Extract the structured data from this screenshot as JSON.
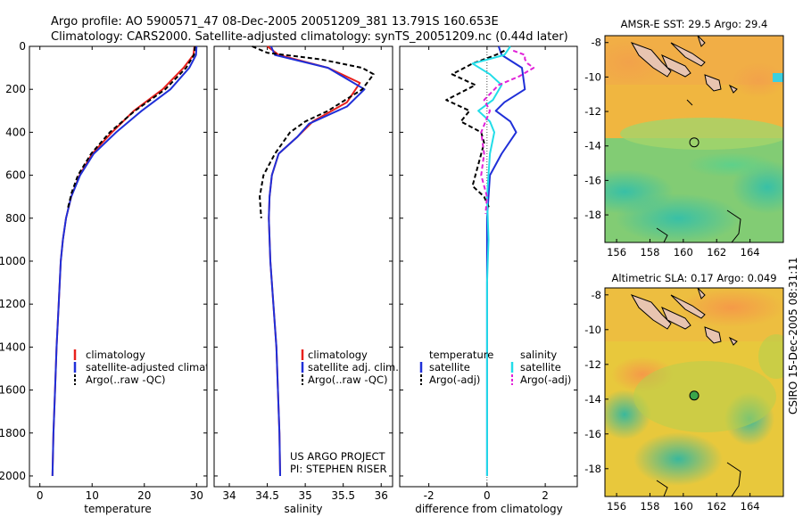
{
  "header": {
    "line1": "Argo profile: AO 5900571_47 08-Dec-2005 20051209_381 13.791S 160.653E",
    "line2": "Climatology: CARS2000. Satellite-adjusted climatology: synTS_20051209.nc (0.44d later)"
  },
  "credits": {
    "project": "US ARGO PROJECT",
    "pi": "PI: STEPHEN RISER",
    "stamp": "CSIRO 15-Dec-2005 08:31:11"
  },
  "colors": {
    "climatology": "#e8201c",
    "satellite": "#1f2fd8",
    "argo": "#000000",
    "sal_satellite": "#22dde8",
    "sal_argo": "#e020d8"
  },
  "chart_data": [
    {
      "id": "temperature",
      "type": "line",
      "xlabel": "temperature",
      "ylabel": "",
      "xlim": [
        -2,
        32
      ],
      "ylim": [
        2050,
        0
      ],
      "xticks": [
        0,
        10,
        20,
        30
      ],
      "yticks": [
        0,
        200,
        400,
        600,
        800,
        1000,
        1200,
        1400,
        1600,
        1800,
        2000
      ],
      "legend": [
        "climatology",
        "satellite-adjusted climatology",
        "Argo(..raw -QC)"
      ],
      "series": [
        {
          "name": "climatology",
          "color": "#e8201c",
          "dash": "",
          "points": [
            [
              29.6,
              0
            ],
            [
              29.4,
              40
            ],
            [
              27.5,
              100
            ],
            [
              23.5,
              200
            ],
            [
              18,
              300
            ],
            [
              13.8,
              400
            ],
            [
              10,
              500
            ],
            [
              7.6,
              600
            ],
            [
              6,
              700
            ],
            [
              5,
              800
            ],
            [
              4.4,
              900
            ],
            [
              4,
              1000
            ],
            [
              3.6,
              1200
            ],
            [
              3.2,
              1400
            ],
            [
              2.9,
              1600
            ],
            [
              2.6,
              1800
            ],
            [
              2.4,
              2000
            ]
          ]
        },
        {
          "name": "satellite-adjusted climatology",
          "color": "#1f2fd8",
          "dash": "",
          "points": [
            [
              30,
              0
            ],
            [
              29.9,
              40
            ],
            [
              28.6,
              100
            ],
            [
              25,
              200
            ],
            [
              19.5,
              300
            ],
            [
              14.6,
              400
            ],
            [
              10.3,
              500
            ],
            [
              7.7,
              600
            ],
            [
              6,
              700
            ],
            [
              5,
              800
            ],
            [
              4.4,
              900
            ],
            [
              4,
              1000
            ],
            [
              3.6,
              1200
            ],
            [
              3.2,
              1400
            ],
            [
              2.9,
              1600
            ],
            [
              2.6,
              1800
            ],
            [
              2.4,
              2000
            ]
          ]
        },
        {
          "name": "Argo(..raw -QC)",
          "color": "#000000",
          "dash": "5,3",
          "points": [
            [
              29.7,
              0
            ],
            [
              29.5,
              40
            ],
            [
              28,
              100
            ],
            [
              24,
              200
            ],
            [
              18.2,
              300
            ],
            [
              13.4,
              400
            ],
            [
              9.8,
              500
            ],
            [
              7.3,
              600
            ],
            [
              6.1,
              680
            ],
            [
              5.3,
              760
            ]
          ]
        }
      ]
    },
    {
      "id": "salinity",
      "type": "line",
      "xlabel": "salinity",
      "ylabel": "",
      "xlim": [
        33.8,
        36.15
      ],
      "ylim": [
        2050,
        0
      ],
      "xticks": [
        34,
        34.5,
        35,
        35.5,
        36
      ],
      "legend": [
        "climatology",
        "satellite adj. clim.",
        "Argo(..raw -QC)"
      ],
      "series": [
        {
          "name": "climatology",
          "color": "#e8201c",
          "dash": "",
          "points": [
            [
              34.5,
              0
            ],
            [
              34.65,
              40
            ],
            [
              35.3,
              100
            ],
            [
              35.72,
              170
            ],
            [
              35.55,
              260
            ],
            [
              35.1,
              350
            ],
            [
              34.9,
              420
            ],
            [
              34.65,
              500
            ],
            [
              34.56,
              600
            ],
            [
              34.53,
              700
            ],
            [
              34.52,
              800
            ],
            [
              34.54,
              1000
            ],
            [
              34.58,
              1200
            ],
            [
              34.62,
              1400
            ],
            [
              34.64,
              1600
            ],
            [
              34.66,
              1800
            ],
            [
              34.67,
              2000
            ]
          ]
        },
        {
          "name": "satellite adj. clim.",
          "color": "#1f2fd8",
          "dash": "",
          "points": [
            [
              34.55,
              0
            ],
            [
              34.6,
              40
            ],
            [
              35.3,
              100
            ],
            [
              35.78,
              200
            ],
            [
              35.55,
              280
            ],
            [
              35.05,
              360
            ],
            [
              34.9,
              420
            ],
            [
              34.65,
              500
            ],
            [
              34.56,
              600
            ],
            [
              34.53,
              700
            ],
            [
              34.52,
              800
            ],
            [
              34.54,
              1000
            ],
            [
              34.58,
              1200
            ],
            [
              34.62,
              1400
            ],
            [
              34.64,
              1600
            ],
            [
              34.66,
              1800
            ],
            [
              34.67,
              2000
            ]
          ]
        },
        {
          "name": "Argo(..raw -QC)",
          "color": "#000000",
          "dash": "5,3",
          "points": [
            [
              34.3,
              0
            ],
            [
              34.5,
              30
            ],
            [
              35.2,
              60
            ],
            [
              35.75,
              100
            ],
            [
              35.9,
              130
            ],
            [
              35.75,
              200
            ],
            [
              35.3,
              300
            ],
            [
              35,
              350
            ],
            [
              34.8,
              400
            ],
            [
              34.6,
              500
            ],
            [
              34.45,
              600
            ],
            [
              34.4,
              700
            ],
            [
              34.42,
              800
            ]
          ]
        }
      ]
    },
    {
      "id": "difference",
      "type": "line",
      "xlabel": "difference from climatology",
      "ylabel": "",
      "xlim": [
        -3,
        3.1
      ],
      "ylim": [
        2050,
        0
      ],
      "xticks": [
        -2,
        0,
        2
      ],
      "legend_titles": [
        "temperature",
        "salinity"
      ],
      "legend": [
        "satellite",
        "Argo(-adj)",
        "satellite",
        "Argo(-adj)"
      ],
      "series": [
        {
          "name": "temperature satellite",
          "color": "#1f2fd8",
          "dash": "",
          "points": [
            [
              0.4,
              0
            ],
            [
              0.5,
              40
            ],
            [
              1.2,
              100
            ],
            [
              1.3,
              200
            ],
            [
              0.6,
              260
            ],
            [
              0.3,
              300
            ],
            [
              0.8,
              350
            ],
            [
              1.0,
              400
            ],
            [
              0.5,
              500
            ],
            [
              0.1,
              600
            ],
            [
              0.05,
              700
            ],
            [
              0,
              800
            ],
            [
              0,
              1000
            ],
            [
              0,
              1500
            ],
            [
              0,
              2000
            ]
          ]
        },
        {
          "name": "temperature Argo(-adj)",
          "color": "#000000",
          "dash": "5,3",
          "points": [
            [
              0.6,
              20
            ],
            [
              0.3,
              40
            ],
            [
              -0.5,
              80
            ],
            [
              -1.2,
              130
            ],
            [
              -0.4,
              180
            ],
            [
              -1.4,
              250
            ],
            [
              -0.6,
              300
            ],
            [
              -0.9,
              350
            ],
            [
              -0.2,
              400
            ],
            [
              -0.1,
              450
            ],
            [
              -0.3,
              550
            ],
            [
              -0.5,
              650
            ],
            [
              -0.1,
              700
            ],
            [
              0.1,
              760
            ]
          ]
        },
        {
          "name": "salinity satellite",
          "color": "#22dde8",
          "dash": "",
          "points": [
            [
              0.8,
              0
            ],
            [
              0.6,
              40
            ],
            [
              -0.5,
              80
            ],
            [
              0.1,
              130
            ],
            [
              0.5,
              180
            ],
            [
              0.2,
              250
            ],
            [
              -0.3,
              300
            ],
            [
              0.1,
              350
            ],
            [
              0.25,
              400
            ],
            [
              0.1,
              500
            ],
            [
              0,
              700
            ],
            [
              0.05,
              900
            ],
            [
              0,
              1100
            ],
            [
              0,
              1400
            ],
            [
              0,
              2000
            ]
          ]
        },
        {
          "name": "salinity Argo(-adj)",
          "color": "#e020d8",
          "dash": "5,3",
          "points": [
            [
              0.9,
              20
            ],
            [
              1.3,
              40
            ],
            [
              1.3,
              60
            ],
            [
              1.4,
              80
            ],
            [
              1.6,
              100
            ],
            [
              1.1,
              140
            ],
            [
              0.4,
              180
            ],
            [
              -0.1,
              250
            ],
            [
              0.1,
              300
            ],
            [
              -0.2,
              400
            ],
            [
              -0.1,
              500
            ],
            [
              -0.2,
              600
            ],
            [
              0,
              700
            ],
            [
              -0.05,
              780
            ]
          ]
        }
      ]
    },
    {
      "id": "amsre_sst_map",
      "type": "heatmap",
      "title": "AMSR-E SST: 29.5 Argo: 29.4",
      "xlim": [
        155.3,
        166
      ],
      "ylim": [
        -19.6,
        -7.6
      ],
      "xticks": [
        156,
        158,
        160,
        162,
        164
      ],
      "yticks": [
        -8,
        -10,
        -12,
        -14,
        -16,
        -18
      ],
      "marker": {
        "lon": 160.653,
        "lat": -13.791,
        "filled": false
      }
    },
    {
      "id": "altimetric_sla_map",
      "type": "heatmap",
      "title": "Altimetric SLA: 0.17 Argo: 0.049",
      "xlim": [
        155.3,
        166
      ],
      "ylim": [
        -19.6,
        -7.6
      ],
      "xticks": [
        156,
        158,
        160,
        162,
        164
      ],
      "yticks": [
        -8,
        -10,
        -12,
        -14,
        -16,
        -18
      ],
      "marker": {
        "lon": 160.653,
        "lat": -13.791,
        "filled": true
      }
    }
  ]
}
